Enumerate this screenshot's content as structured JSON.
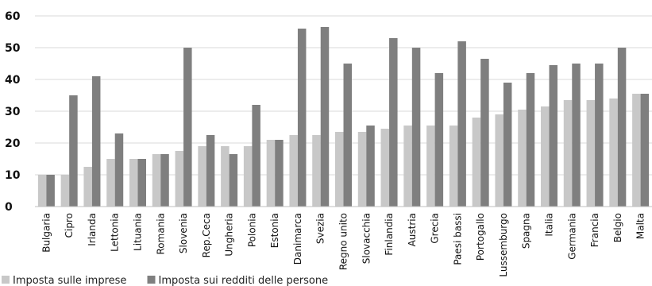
{
  "chart_data": {
    "type": "bar",
    "categories": [
      "Bulgaria",
      "Cipro",
      "Irlanda",
      "Lettonia",
      "Lituania",
      "Romania",
      "Slovenia",
      "Rep.Ceca",
      "Ungheria",
      "Polonia",
      "Estonia",
      "Danimarca",
      "Svezia",
      "Regno unito",
      "Slovacchia",
      "Finlandia",
      "Austria",
      "Grecia",
      "Paesi bassi",
      "Portogallo",
      "Lussemburgo",
      "Spagna",
      "Italia",
      "Germania",
      "Francia",
      "Belgio",
      "Malta"
    ],
    "series": [
      {
        "name": "Imposta sulle imprese",
        "color": "#c8c8c8",
        "values": [
          10,
          10,
          12.5,
          15,
          15,
          16.5,
          17.5,
          19,
          19,
          19,
          21,
          22.5,
          22.5,
          23.5,
          23.5,
          24.5,
          25.5,
          25.5,
          25.5,
          28,
          29,
          30.5,
          31.5,
          33.5,
          33.5,
          34,
          35.5
        ]
      },
      {
        "name": "Imposta sui redditi delle persone",
        "color": "#7f7f7f",
        "values": [
          10,
          35,
          41,
          23,
          15,
          16.5,
          50,
          22.5,
          16.5,
          32,
          21,
          56,
          56.5,
          45,
          25.5,
          53,
          50,
          42,
          52,
          46.5,
          39,
          42,
          44.5,
          45,
          45,
          50,
          35.5
        ]
      }
    ],
    "ylim": [
      0,
      60
    ],
    "yticks": [
      0,
      10,
      20,
      30,
      40,
      50,
      60
    ],
    "grid": true,
    "legend": "bottom-left"
  }
}
